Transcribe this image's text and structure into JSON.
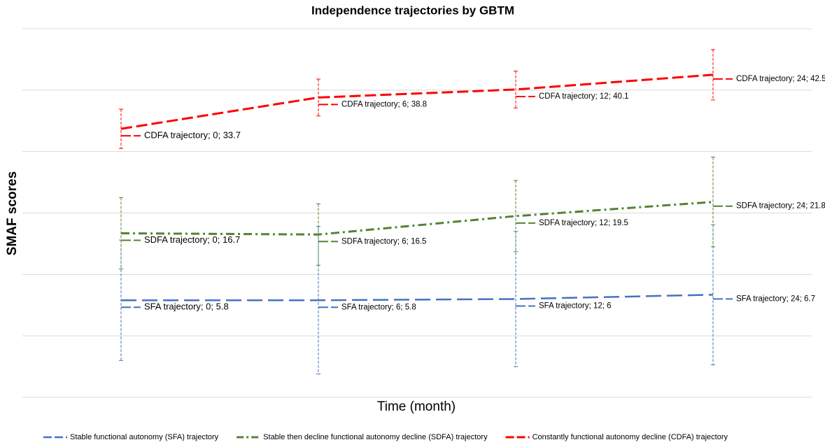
{
  "chart_data": {
    "type": "line",
    "title": "Independence trajectories by GBTM",
    "x_label": "Time (month)",
    "y_label": "SMAF scores",
    "categories": [
      "0",
      "6",
      "12",
      "24"
    ],
    "ylim": [
      -10,
      50
    ],
    "yticks": [
      -10,
      0,
      10,
      20,
      30,
      40,
      50
    ],
    "grid": true,
    "series": [
      {
        "name": "Stable functional autonomy (SFA) trajectory",
        "color": "#4472c4",
        "dash": "long-dash",
        "values": [
          5.8,
          5.8,
          6,
          6.7
        ],
        "errors": [
          9.8,
          12,
          11,
          11.4
        ],
        "value_labels": [
          "SFA trajectory; 0; 5.8",
          "SFA trajectory; 6; 5.8",
          "SFA trajectory; 12; 6",
          "SFA trajectory; 24; 6.7"
        ]
      },
      {
        "name": "Stable then decline functional autonomy decline (SDFA) trajectory",
        "color": "#548235",
        "dash": "dash-dot",
        "values": [
          16.7,
          16.5,
          19.5,
          21.8
        ],
        "errors": [
          5.8,
          5,
          5.8,
          7.3
        ],
        "value_labels": [
          "SDFA trajectory; 0; 16.7",
          "SDFA trajectory; 6; 16.5",
          "SDFA trajectory; 12; 19.5",
          "SDFA trajectory; 24; 21.8"
        ]
      },
      {
        "name": "Constantly functional autonomy decline (CDFA) trajectory",
        "color": "#ff0000",
        "dash": "dash",
        "values": [
          33.7,
          38.8,
          40.1,
          42.5
        ],
        "errors": [
          3.2,
          3,
          3,
          4.1
        ],
        "value_labels": [
          "CDFA trajectory; 0; 33.7",
          "CDFA trajectory; 6; 38.8",
          "CDFA trajectory; 12; 40.1",
          "CDFA trajectory; 24; 42.5"
        ]
      }
    ]
  }
}
